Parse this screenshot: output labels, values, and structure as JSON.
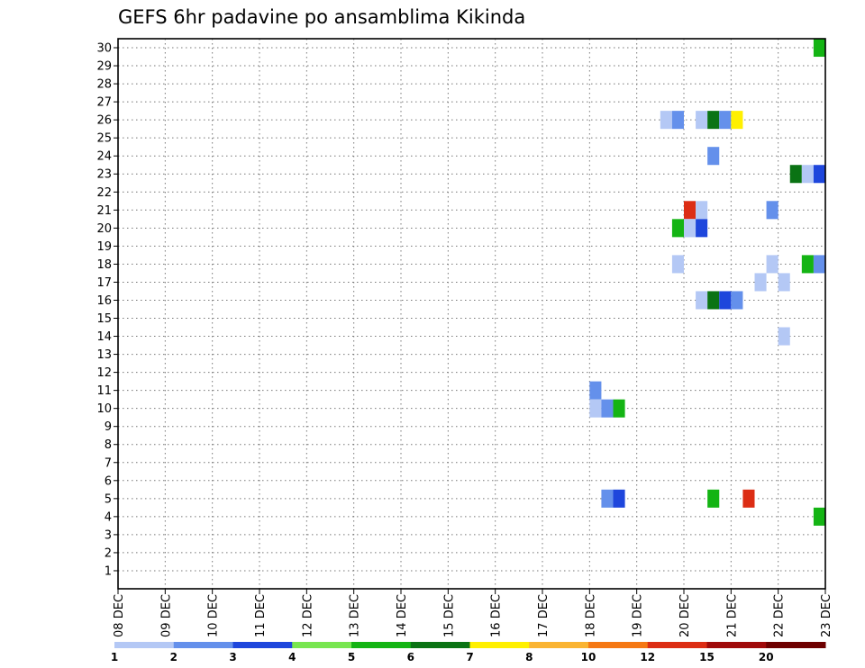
{
  "chart_data": {
    "type": "heatmap",
    "title": "GEFS 6hr padavine po ansamblima Kikinda",
    "xlabel": "",
    "ylabel": "",
    "x_tick_labels": [
      "08 DEC",
      "09 DEC",
      "10 DEC",
      "11 DEC",
      "12 DEC",
      "13 DEC",
      "14 DEC",
      "15 DEC",
      "16 DEC",
      "17 DEC",
      "18 DEC",
      "19 DEC",
      "20 DEC",
      "21 DEC",
      "22 DEC",
      "23 DEC"
    ],
    "xlim": [
      0,
      15
    ],
    "ylim": [
      0,
      30.5
    ],
    "y_ticks": [
      1,
      2,
      3,
      4,
      5,
      6,
      7,
      8,
      9,
      10,
      11,
      12,
      13,
      14,
      15,
      16,
      17,
      18,
      19,
      20,
      21,
      22,
      23,
      24,
      25,
      26,
      27,
      28,
      29,
      30
    ],
    "grid": true,
    "colorbar": {
      "labels": [
        "1",
        "2",
        "3",
        "4",
        "5",
        "6",
        "7",
        "8",
        "10",
        "12",
        "15",
        "20"
      ],
      "colors": [
        "#b4c8f5",
        "#6490eb",
        "#1e46dc",
        "#78e650",
        "#14b414",
        "#0a7314",
        "#fff000",
        "#fab432",
        "#f57814",
        "#dc2d14",
        "#a00a0a",
        "#6e0000"
      ]
    },
    "cell_duration_days": 0.25,
    "cells": [
      {
        "day": 14.875,
        "member": 30,
        "level": 5
      },
      {
        "day": 11.625,
        "member": 26,
        "level": 1
      },
      {
        "day": 11.875,
        "member": 26,
        "level": 2
      },
      {
        "day": 12.375,
        "member": 26,
        "level": 1
      },
      {
        "day": 12.625,
        "member": 26,
        "level": 6
      },
      {
        "day": 12.875,
        "member": 26,
        "level": 2
      },
      {
        "day": 13.125,
        "member": 26,
        "level": 7
      },
      {
        "day": 12.625,
        "member": 24,
        "level": 2
      },
      {
        "day": 14.375,
        "member": 23,
        "level": 6
      },
      {
        "day": 14.625,
        "member": 23,
        "level": 1
      },
      {
        "day": 14.875,
        "member": 23,
        "level": 3
      },
      {
        "day": 12.125,
        "member": 21,
        "level": 10
      },
      {
        "day": 12.375,
        "member": 21,
        "level": 1
      },
      {
        "day": 13.875,
        "member": 21,
        "level": 2
      },
      {
        "day": 12.125,
        "member": 20,
        "level": 1
      },
      {
        "day": 11.875,
        "member": 20,
        "level": 5
      },
      {
        "day": 12.125,
        "member": 20,
        "level": 1
      },
      {
        "day": 12.375,
        "member": 20,
        "level": 3
      },
      {
        "day": 11.875,
        "member": 18,
        "level": 1
      },
      {
        "day": 13.875,
        "member": 18,
        "level": 1
      },
      {
        "day": 14.625,
        "member": 18,
        "level": 5
      },
      {
        "day": 14.875,
        "member": 18,
        "level": 2
      },
      {
        "day": 13.625,
        "member": 17,
        "level": 1
      },
      {
        "day": 14.125,
        "member": 17,
        "level": 1
      },
      {
        "day": 12.375,
        "member": 16,
        "level": 1
      },
      {
        "day": 12.625,
        "member": 16,
        "level": 6
      },
      {
        "day": 12.875,
        "member": 16,
        "level": 3
      },
      {
        "day": 13.125,
        "member": 16,
        "level": 2
      },
      {
        "day": 14.125,
        "member": 14,
        "level": 1
      },
      {
        "day": 10.125,
        "member": 11,
        "level": 2
      },
      {
        "day": 10.125,
        "member": 10,
        "level": 1
      },
      {
        "day": 10.375,
        "member": 10,
        "level": 2
      },
      {
        "day": 10.625,
        "member": 10,
        "level": 5
      },
      {
        "day": 10.375,
        "member": 5,
        "level": 2
      },
      {
        "day": 10.625,
        "member": 5,
        "level": 3
      },
      {
        "day": 12.625,
        "member": 5,
        "level": 5
      },
      {
        "day": 13.375,
        "member": 5,
        "level": 10
      },
      {
        "day": 14.875,
        "member": 4,
        "level": 5
      }
    ]
  }
}
